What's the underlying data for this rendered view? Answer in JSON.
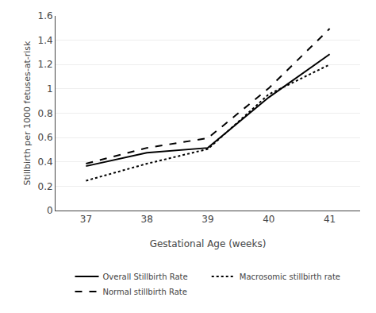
{
  "chart_data": {
    "type": "line",
    "x": [
      37,
      38,
      39,
      40,
      41
    ],
    "series": [
      {
        "name": "Overall Stillbirth Rate",
        "color": "#000000",
        "line_style": "solid",
        "values": [
          0.365,
          0.475,
          0.515,
          0.93,
          1.285
        ]
      },
      {
        "name": "Macrosomic stillbirth rate",
        "color": "#000000",
        "line_style": "dotted",
        "values": [
          0.245,
          0.385,
          0.505,
          0.955,
          1.2
        ]
      },
      {
        "name": "Normal stillbirth Rate",
        "color": "#000000",
        "line_style": "dashed",
        "values": [
          0.385,
          0.515,
          0.595,
          1.005,
          1.495
        ]
      }
    ],
    "xlabel": "Gestational Age (weeks)",
    "ylabel": "Stillbirth per 1000 fetuses-at-risk",
    "xlim": [
      36.5,
      41.5
    ],
    "xticks": [
      37,
      38,
      39,
      40,
      41
    ],
    "ylim": [
      0,
      1.6
    ],
    "yticks": [
      0,
      0.2,
      0.4,
      0.6,
      0.8,
      1,
      1.2,
      1.4,
      1.6
    ],
    "grid": "y",
    "legend": "bottom"
  }
}
